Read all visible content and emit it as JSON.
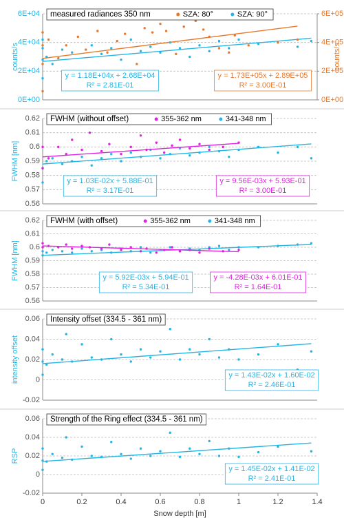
{
  "chart_data": [
    {
      "type": "scatter",
      "title": "measured radiances 350 nm",
      "ylabel": "counts/s",
      "y2label": "counts/s",
      "xlim": [
        0,
        1.4
      ],
      "ylim": [
        0,
        60000
      ],
      "y2lim": [
        0,
        600000
      ],
      "yticks": [
        {
          "value": 0,
          "label": "0E+00"
        },
        {
          "value": 20000,
          "label": "2E+04"
        },
        {
          "value": 40000,
          "label": "4E+04"
        },
        {
          "value": 60000,
          "label": "6E+04"
        }
      ],
      "y2ticks": [
        {
          "value": 0,
          "label": "0E+00"
        },
        {
          "value": 200000,
          "label": "2E+05"
        },
        {
          "value": 400000,
          "label": "4E+05"
        },
        {
          "value": 600000,
          "label": "6E+05"
        }
      ],
      "grid": true,
      "series": [
        {
          "name": "SZA: 90°",
          "color": "#22b5e6",
          "x": [
            0,
            0,
            0,
            0,
            0.02,
            0.05,
            0.1,
            0.15,
            0.2,
            0.25,
            0.3,
            0.35,
            0.4,
            0.45,
            0.5,
            0.55,
            0.6,
            0.65,
            0.7,
            0.75,
            0.8,
            0.85,
            0.9,
            0.95,
            1.0,
            1.1,
            1.2,
            1.3,
            1.37
          ],
          "values": [
            15000,
            28000,
            36000,
            42000,
            30000,
            25000,
            35000,
            33000,
            18000,
            38000,
            32000,
            36000,
            28000,
            42000,
            34000,
            37000,
            33000,
            40000,
            36000,
            30000,
            38000,
            34000,
            41000,
            36000,
            42000,
            39000,
            40000,
            37000,
            41000
          ],
          "fit": {
            "slope": 11800,
            "intercept": 26800,
            "equation": "y = 1.18E+04x + 2.68E+04",
            "r2": "R² = 2.81E-01"
          }
        },
        {
          "name": "SZA: 80°",
          "color": "#e8782a",
          "axis": "y2",
          "x": [
            0,
            0,
            0,
            0,
            0.03,
            0.08,
            0.12,
            0.18,
            0.22,
            0.28,
            0.33,
            0.38,
            0.42,
            0.48,
            0.52,
            0.56,
            0.6,
            0.63,
            0.68,
            0.72,
            0.78,
            0.82,
            0.85,
            0.9,
            0.95,
            0.98,
            1.05,
            1.2,
            1.3
          ],
          "values": [
            60000,
            250000,
            380000,
            470000,
            420000,
            290000,
            380000,
            440000,
            350000,
            480000,
            330000,
            410000,
            460000,
            250000,
            500000,
            470000,
            530000,
            480000,
            320000,
            510000,
            550000,
            490000,
            440000,
            360000,
            330000,
            450000,
            380000,
            400000,
            420000
          ],
          "fit": {
            "slope": 173000,
            "intercept": 289000,
            "equation": "y = 1.73E+05x + 2.89E+05",
            "r2": "R² = 3.00E-01"
          }
        }
      ]
    },
    {
      "type": "scatter",
      "title": "FWHM (without offset)",
      "ylabel": "FWHM [nm]",
      "xlim": [
        0,
        1.4
      ],
      "ylim": [
        0.56,
        0.62
      ],
      "yticks": [
        0.56,
        0.57,
        0.58,
        0.59,
        0.6,
        0.61,
        0.62
      ],
      "grid": true,
      "series": [
        {
          "name": "341-348 nm",
          "color": "#22b5e6",
          "x": [
            0,
            0,
            0.02,
            0.05,
            0.1,
            0.15,
            0.2,
            0.25,
            0.3,
            0.35,
            0.4,
            0.45,
            0.5,
            0.55,
            0.6,
            0.65,
            0.7,
            0.75,
            0.8,
            0.85,
            0.9,
            0.95,
            1.0,
            1.1,
            1.2,
            1.3,
            1.37
          ],
          "values": [
            0.575,
            0.585,
            0.59,
            0.592,
            0.588,
            0.59,
            0.593,
            0.587,
            0.592,
            0.595,
            0.59,
            0.596,
            0.593,
            0.598,
            0.592,
            0.595,
            0.599,
            0.594,
            0.596,
            0.6,
            0.597,
            0.593,
            0.598,
            0.6,
            0.596,
            0.6,
            0.592
          ],
          "fit": {
            "slope": 0.0103,
            "intercept": 0.588,
            "equation": "y = 1.03E-02x + 5.88E-01",
            "r2": "R² = 3.17E-01"
          }
        },
        {
          "name": "355-362 nm",
          "color": "#e020e0",
          "x": [
            0,
            0,
            0.03,
            0.08,
            0.12,
            0.15,
            0.2,
            0.24,
            0.3,
            0.34,
            0.4,
            0.45,
            0.5,
            0.53,
            0.58,
            0.62,
            0.66,
            0.7,
            0.75,
            0.8,
            0.85,
            0.92,
            1.0
          ],
          "values": [
            0.6,
            0.585,
            0.592,
            0.6,
            0.595,
            0.605,
            0.598,
            0.61,
            0.597,
            0.602,
            0.595,
            0.6,
            0.608,
            0.598,
            0.603,
            0.596,
            0.601,
            0.605,
            0.599,
            0.602,
            0.598,
            0.6,
            0.603
          ],
          "fit": {
            "slope": 0.00956,
            "intercept": 0.593,
            "equation": "y = 9.56E-03x + 5.93E-01",
            "r2": "R² = 3.00E-01"
          }
        }
      ]
    },
    {
      "type": "scatter",
      "title": "FWHM (with offset)",
      "ylabel": "FWHM [nm]",
      "xlim": [
        0,
        1.4
      ],
      "ylim": [
        0.56,
        0.62
      ],
      "yticks": [
        0.56,
        0.57,
        0.58,
        0.59,
        0.6,
        0.61,
        0.62
      ],
      "grid": true,
      "series": [
        {
          "name": "341-348 nm",
          "color": "#22b5e6",
          "x": [
            0,
            0,
            0.02,
            0.05,
            0.1,
            0.15,
            0.2,
            0.25,
            0.3,
            0.35,
            0.4,
            0.45,
            0.5,
            0.55,
            0.6,
            0.65,
            0.7,
            0.75,
            0.8,
            0.85,
            0.9,
            0.95,
            1.0,
            1.1,
            1.2,
            1.3,
            1.37
          ],
          "values": [
            0.594,
            0.597,
            0.596,
            0.598,
            0.597,
            0.596,
            0.599,
            0.597,
            0.598,
            0.596,
            0.599,
            0.597,
            0.6,
            0.596,
            0.598,
            0.6,
            0.597,
            0.599,
            0.598,
            0.6,
            0.601,
            0.598,
            0.6,
            0.6,
            0.601,
            0.602,
            0.603
          ],
          "fit": {
            "slope": 0.00592,
            "intercept": 0.594,
            "equation": "y = 5.92E-03x + 5.94E-01",
            "r2": "R² = 5.34E-01"
          }
        },
        {
          "name": "355-362 nm",
          "color": "#e020e0",
          "x": [
            0,
            0,
            0.03,
            0.08,
            0.12,
            0.15,
            0.2,
            0.24,
            0.3,
            0.34,
            0.4,
            0.45,
            0.5,
            0.53,
            0.58,
            0.62,
            0.66,
            0.7,
            0.75,
            0.8,
            0.85,
            0.92,
            1.0
          ],
          "values": [
            0.603,
            0.6,
            0.601,
            0.6,
            0.602,
            0.599,
            0.601,
            0.6,
            0.599,
            0.602,
            0.598,
            0.6,
            0.597,
            0.599,
            0.596,
            0.598,
            0.6,
            0.597,
            0.598,
            0.596,
            0.599,
            0.597,
            0.598
          ],
          "fit": {
            "slope": -0.00428,
            "intercept": 0.601,
            "equation": "y = -4.28E-03x + 6.01E-01",
            "r2": "R² = 1.64E-01"
          }
        }
      ]
    },
    {
      "type": "scatter",
      "title": "Intensity offset (334.5 - 361 nm)",
      "ylabel": "intensity offset",
      "xlim": [
        0,
        1.4
      ],
      "ylim": [
        -0.02,
        0.06
      ],
      "yticks": [
        -0.02,
        0,
        0.02,
        0.04,
        0.06
      ],
      "grid": true,
      "series": [
        {
          "color": "#22b5e6",
          "x": [
            0,
            0,
            0,
            0.02,
            0.05,
            0.1,
            0.12,
            0.15,
            0.2,
            0.25,
            0.3,
            0.35,
            0.4,
            0.45,
            0.5,
            0.55,
            0.6,
            0.65,
            0.7,
            0.75,
            0.8,
            0.85,
            0.9,
            0.95,
            1.0,
            1.1,
            1.2,
            1.3,
            1.37
          ],
          "values": [
            0.005,
            0.018,
            0.03,
            0.015,
            0.025,
            0.02,
            0.045,
            0.018,
            0.035,
            0.022,
            0.02,
            0.04,
            0.025,
            0.018,
            0.03,
            0.022,
            0.028,
            0.05,
            0.02,
            0.03,
            0.025,
            0.04,
            0.022,
            0.03,
            0.02,
            0.025,
            0.035,
            0.01,
            0.028
          ],
          "fit": {
            "slope": 0.0143,
            "intercept": 0.016,
            "equation": "y = 1.43E-02x + 1.60E-02",
            "r2": "R² = 2.46E-01"
          }
        }
      ]
    },
    {
      "type": "scatter",
      "title": "Strength of the Ring effect (334.5 - 361 nm)",
      "ylabel": "RSP",
      "xlabel": "Snow depth [m]",
      "xlim": [
        0,
        1.4
      ],
      "ylim": [
        -0.02,
        0.06
      ],
      "yticks": [
        -0.02,
        0,
        0.02,
        0.04,
        0.06
      ],
      "xticks": [
        0,
        0.2,
        0.4,
        0.6,
        0.8,
        1,
        1.2,
        1.4
      ],
      "grid": true,
      "series": [
        {
          "color": "#22b5e6",
          "x": [
            0,
            0,
            0,
            0.02,
            0.05,
            0.1,
            0.12,
            0.15,
            0.2,
            0.25,
            0.3,
            0.35,
            0.4,
            0.45,
            0.5,
            0.55,
            0.6,
            0.65,
            0.7,
            0.75,
            0.8,
            0.85,
            0.9,
            0.95,
            1.0,
            1.1,
            1.2,
            1.3,
            1.37
          ],
          "values": [
            0.005,
            0.015,
            0.028,
            0.014,
            0.022,
            0.018,
            0.04,
            0.016,
            0.03,
            0.02,
            0.019,
            0.035,
            0.022,
            0.017,
            0.028,
            0.02,
            0.025,
            0.045,
            0.019,
            0.028,
            0.022,
            0.036,
            0.02,
            0.028,
            0.019,
            0.024,
            0.03,
            0.008,
            0.025
          ],
          "fit": {
            "slope": 0.0145,
            "intercept": 0.0141,
            "equation": "y = 1.45E-02x + 1.41E-02",
            "r2": "R² = 2.41E-01"
          }
        }
      ]
    }
  ]
}
